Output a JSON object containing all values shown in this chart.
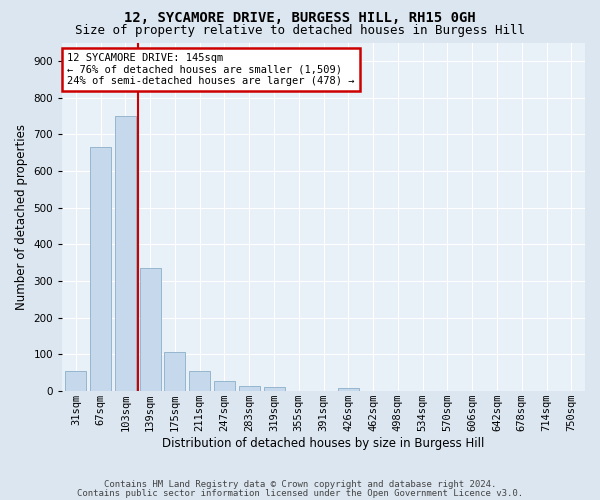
{
  "title": "12, SYCAMORE DRIVE, BURGESS HILL, RH15 0GH",
  "subtitle": "Size of property relative to detached houses in Burgess Hill",
  "xlabel": "Distribution of detached houses by size in Burgess Hill",
  "ylabel": "Number of detached properties",
  "footer_line1": "Contains HM Land Registry data © Crown copyright and database right 2024.",
  "footer_line2": "Contains public sector information licensed under the Open Government Licence v3.0.",
  "bin_labels": [
    "31sqm",
    "67sqm",
    "103sqm",
    "139sqm",
    "175sqm",
    "211sqm",
    "247sqm",
    "283sqm",
    "319sqm",
    "355sqm",
    "391sqm",
    "426sqm",
    "462sqm",
    "498sqm",
    "534sqm",
    "570sqm",
    "606sqm",
    "642sqm",
    "678sqm",
    "714sqm",
    "750sqm"
  ],
  "bar_values": [
    55,
    665,
    750,
    335,
    107,
    55,
    27,
    15,
    12,
    0,
    0,
    8,
    0,
    0,
    0,
    0,
    0,
    0,
    0,
    0,
    0
  ],
  "bar_color": "#c6d9ec",
  "bar_edge_color": "#8aafc8",
  "red_line_x": 2.5,
  "annotation_line1": "12 SYCAMORE DRIVE: 145sqm",
  "annotation_line2": "← 76% of detached houses are smaller (1,509)",
  "annotation_line3": "24% of semi-detached houses are larger (478) →",
  "annotation_box_color": "#ffffff",
  "annotation_box_edge": "#cc0000",
  "ylim": [
    0,
    950
  ],
  "yticks": [
    0,
    100,
    200,
    300,
    400,
    500,
    600,
    700,
    800,
    900
  ],
  "bg_color": "#dce6f0",
  "plot_bg_color": "#e8f0f8",
  "grid_color": "#ffffff",
  "title_fontsize": 10,
  "subtitle_fontsize": 9,
  "axis_label_fontsize": 8.5,
  "tick_fontsize": 7.5,
  "annotation_fontsize": 7.5,
  "footer_fontsize": 6.5
}
